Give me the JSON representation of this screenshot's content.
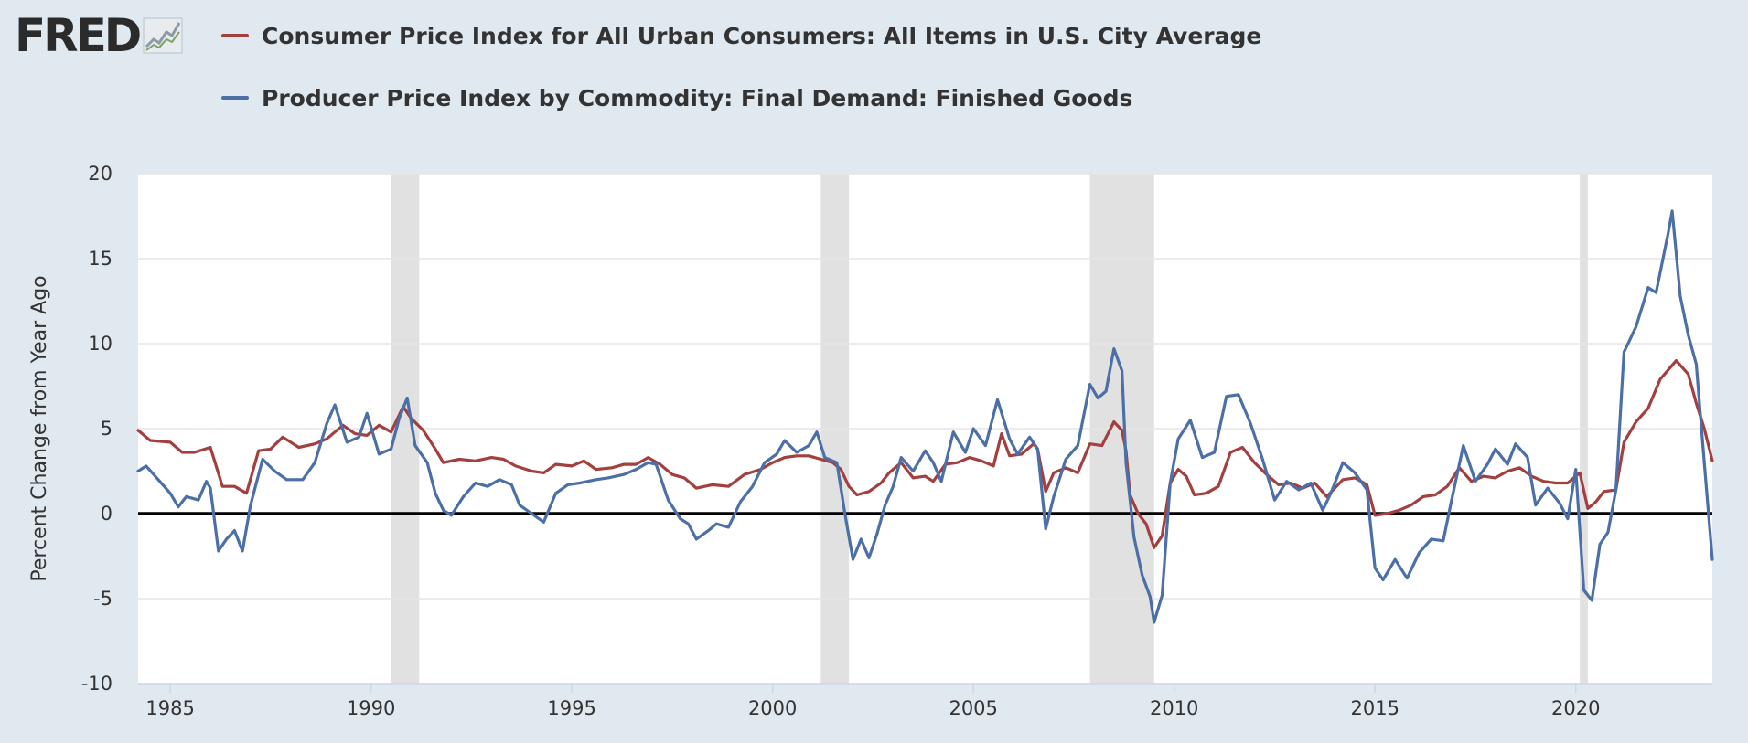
{
  "logo": {
    "text": "FRED",
    "icon": "chart-trend-icon"
  },
  "colors": {
    "background": "#e1e9f0",
    "plot": "#ffffff",
    "recession": "#e1e1e1",
    "cpi": "#a3403f",
    "ppi": "#4b6fa6",
    "zero_line": "#000000",
    "grid": "#e6e6e6"
  },
  "chart_data": {
    "type": "line",
    "ylabel": "Percent Change from Year Ago",
    "ylim": [
      -10,
      20
    ],
    "yticks": [
      -10,
      -5,
      0,
      5,
      10,
      15,
      20
    ],
    "xlim": [
      1984.2,
      2023.4
    ],
    "xticks": [
      1985,
      1990,
      1995,
      2000,
      2005,
      2010,
      2015,
      2020
    ],
    "grid": "horizontal",
    "legend_position": "top",
    "zero_line": true,
    "recessions": [
      [
        1990.5,
        1991.2
      ],
      [
        2001.2,
        2001.9
      ],
      [
        2007.9,
        2009.5
      ],
      [
        2020.1,
        2020.3
      ]
    ],
    "series": [
      {
        "name": "Consumer Price Index for All Urban Consumers: All Items in U.S. City Average",
        "color": "#a3403f",
        "points": [
          [
            1984.2,
            4.9
          ],
          [
            1984.5,
            4.3
          ],
          [
            1985.0,
            4.2
          ],
          [
            1985.3,
            3.6
          ],
          [
            1985.6,
            3.6
          ],
          [
            1986.0,
            3.9
          ],
          [
            1986.3,
            1.6
          ],
          [
            1986.6,
            1.6
          ],
          [
            1986.9,
            1.2
          ],
          [
            1987.2,
            3.7
          ],
          [
            1987.5,
            3.8
          ],
          [
            1987.8,
            4.5
          ],
          [
            1988.2,
            3.9
          ],
          [
            1988.6,
            4.1
          ],
          [
            1988.9,
            4.4
          ],
          [
            1989.3,
            5.2
          ],
          [
            1989.6,
            4.7
          ],
          [
            1989.9,
            4.6
          ],
          [
            1990.2,
            5.2
          ],
          [
            1990.5,
            4.8
          ],
          [
            1990.8,
            6.3
          ],
          [
            1991.0,
            5.6
          ],
          [
            1991.3,
            4.9
          ],
          [
            1991.6,
            3.8
          ],
          [
            1991.8,
            3.0
          ],
          [
            1992.2,
            3.2
          ],
          [
            1992.6,
            3.1
          ],
          [
            1993.0,
            3.3
          ],
          [
            1993.3,
            3.2
          ],
          [
            1993.6,
            2.8
          ],
          [
            1994.0,
            2.5
          ],
          [
            1994.3,
            2.4
          ],
          [
            1994.6,
            2.9
          ],
          [
            1995.0,
            2.8
          ],
          [
            1995.3,
            3.1
          ],
          [
            1995.6,
            2.6
          ],
          [
            1996.0,
            2.7
          ],
          [
            1996.3,
            2.9
          ],
          [
            1996.6,
            2.9
          ],
          [
            1996.9,
            3.3
          ],
          [
            1997.2,
            2.9
          ],
          [
            1997.5,
            2.3
          ],
          [
            1997.8,
            2.1
          ],
          [
            1998.1,
            1.5
          ],
          [
            1998.5,
            1.7
          ],
          [
            1998.9,
            1.6
          ],
          [
            1999.3,
            2.3
          ],
          [
            1999.7,
            2.6
          ],
          [
            2000.0,
            3.0
          ],
          [
            2000.3,
            3.3
          ],
          [
            2000.6,
            3.4
          ],
          [
            2000.9,
            3.4
          ],
          [
            2001.2,
            3.2
          ],
          [
            2001.5,
            3.0
          ],
          [
            2001.7,
            2.6
          ],
          [
            2001.9,
            1.6
          ],
          [
            2002.1,
            1.1
          ],
          [
            2002.4,
            1.3
          ],
          [
            2002.7,
            1.8
          ],
          [
            2002.9,
            2.4
          ],
          [
            2003.2,
            3.0
          ],
          [
            2003.5,
            2.1
          ],
          [
            2003.8,
            2.2
          ],
          [
            2004.0,
            1.9
          ],
          [
            2004.3,
            2.9
          ],
          [
            2004.6,
            3.0
          ],
          [
            2004.9,
            3.3
          ],
          [
            2005.2,
            3.1
          ],
          [
            2005.5,
            2.8
          ],
          [
            2005.7,
            4.7
          ],
          [
            2005.9,
            3.4
          ],
          [
            2006.2,
            3.5
          ],
          [
            2006.5,
            4.1
          ],
          [
            2006.6,
            3.8
          ],
          [
            2006.8,
            1.3
          ],
          [
            2007.0,
            2.4
          ],
          [
            2007.3,
            2.7
          ],
          [
            2007.6,
            2.4
          ],
          [
            2007.9,
            4.1
          ],
          [
            2008.2,
            4.0
          ],
          [
            2008.5,
            5.4
          ],
          [
            2008.7,
            4.9
          ],
          [
            2008.8,
            3.7
          ],
          [
            2008.9,
            1.1
          ],
          [
            2009.1,
            0.0
          ],
          [
            2009.3,
            -0.6
          ],
          [
            2009.5,
            -2.0
          ],
          [
            2009.7,
            -1.3
          ],
          [
            2009.9,
            1.8
          ],
          [
            2010.1,
            2.6
          ],
          [
            2010.3,
            2.2
          ],
          [
            2010.5,
            1.1
          ],
          [
            2010.8,
            1.2
          ],
          [
            2011.1,
            1.6
          ],
          [
            2011.4,
            3.6
          ],
          [
            2011.7,
            3.9
          ],
          [
            2012.0,
            3.0
          ],
          [
            2012.3,
            2.3
          ],
          [
            2012.6,
            1.7
          ],
          [
            2012.9,
            1.8
          ],
          [
            2013.2,
            1.5
          ],
          [
            2013.5,
            1.8
          ],
          [
            2013.8,
            1.0
          ],
          [
            2014.2,
            2.0
          ],
          [
            2014.5,
            2.1
          ],
          [
            2014.8,
            1.7
          ],
          [
            2015.0,
            -0.1
          ],
          [
            2015.3,
            0.0
          ],
          [
            2015.6,
            0.2
          ],
          [
            2015.9,
            0.5
          ],
          [
            2016.2,
            1.0
          ],
          [
            2016.5,
            1.1
          ],
          [
            2016.8,
            1.6
          ],
          [
            2017.1,
            2.7
          ],
          [
            2017.4,
            1.9
          ],
          [
            2017.7,
            2.2
          ],
          [
            2018.0,
            2.1
          ],
          [
            2018.3,
            2.5
          ],
          [
            2018.6,
            2.7
          ],
          [
            2018.9,
            2.2
          ],
          [
            2019.2,
            1.9
          ],
          [
            2019.5,
            1.8
          ],
          [
            2019.8,
            1.8
          ],
          [
            2020.1,
            2.4
          ],
          [
            2020.3,
            0.3
          ],
          [
            2020.5,
            0.7
          ],
          [
            2020.7,
            1.3
          ],
          [
            2021.0,
            1.4
          ],
          [
            2021.2,
            4.2
          ],
          [
            2021.5,
            5.4
          ],
          [
            2021.8,
            6.2
          ],
          [
            2022.1,
            7.9
          ],
          [
            2022.5,
            9.0
          ],
          [
            2022.8,
            8.2
          ],
          [
            2023.0,
            6.5
          ],
          [
            2023.2,
            5.0
          ],
          [
            2023.4,
            3.1
          ]
        ]
      },
      {
        "name": "Producer Price Index by Commodity: Final Demand: Finished Goods",
        "color": "#4b6fa6",
        "points": [
          [
            1984.2,
            2.5
          ],
          [
            1984.4,
            2.8
          ],
          [
            1984.7,
            2.0
          ],
          [
            1985.0,
            1.2
          ],
          [
            1985.2,
            0.4
          ],
          [
            1985.4,
            1.0
          ],
          [
            1985.7,
            0.8
          ],
          [
            1985.9,
            1.9
          ],
          [
            1986.0,
            1.5
          ],
          [
            1986.2,
            -2.2
          ],
          [
            1986.4,
            -1.5
          ],
          [
            1986.6,
            -1.0
          ],
          [
            1986.8,
            -2.2
          ],
          [
            1987.0,
            0.5
          ],
          [
            1987.3,
            3.2
          ],
          [
            1987.6,
            2.5
          ],
          [
            1987.9,
            2.0
          ],
          [
            1988.3,
            2.0
          ],
          [
            1988.6,
            3.0
          ],
          [
            1988.9,
            5.3
          ],
          [
            1989.1,
            6.4
          ],
          [
            1989.4,
            4.2
          ],
          [
            1989.7,
            4.5
          ],
          [
            1989.9,
            5.9
          ],
          [
            1990.2,
            3.5
          ],
          [
            1990.5,
            3.8
          ],
          [
            1990.7,
            5.6
          ],
          [
            1990.9,
            6.8
          ],
          [
            1991.1,
            4.0
          ],
          [
            1991.4,
            3.0
          ],
          [
            1991.6,
            1.2
          ],
          [
            1991.8,
            0.2
          ],
          [
            1992.0,
            -0.1
          ],
          [
            1992.3,
            1.0
          ],
          [
            1992.6,
            1.8
          ],
          [
            1992.9,
            1.6
          ],
          [
            1993.2,
            2.0
          ],
          [
            1993.5,
            1.7
          ],
          [
            1993.7,
            0.5
          ],
          [
            1994.0,
            0.0
          ],
          [
            1994.3,
            -0.5
          ],
          [
            1994.6,
            1.2
          ],
          [
            1994.9,
            1.7
          ],
          [
            1995.2,
            1.8
          ],
          [
            1995.6,
            2.0
          ],
          [
            1995.9,
            2.1
          ],
          [
            1996.3,
            2.3
          ],
          [
            1996.6,
            2.6
          ],
          [
            1996.9,
            3.0
          ],
          [
            1997.1,
            2.9
          ],
          [
            1997.4,
            0.8
          ],
          [
            1997.7,
            -0.3
          ],
          [
            1997.9,
            -0.6
          ],
          [
            1998.1,
            -1.5
          ],
          [
            1998.4,
            -1.0
          ],
          [
            1998.6,
            -0.6
          ],
          [
            1998.9,
            -0.8
          ],
          [
            1999.2,
            0.7
          ],
          [
            1999.5,
            1.6
          ],
          [
            1999.8,
            3.0
          ],
          [
            2000.1,
            3.5
          ],
          [
            2000.3,
            4.3
          ],
          [
            2000.6,
            3.6
          ],
          [
            2000.9,
            4.0
          ],
          [
            2001.1,
            4.8
          ],
          [
            2001.3,
            3.3
          ],
          [
            2001.6,
            3.0
          ],
          [
            2001.8,
            0.0
          ],
          [
            2002.0,
            -2.7
          ],
          [
            2002.2,
            -1.5
          ],
          [
            2002.4,
            -2.6
          ],
          [
            2002.6,
            -1.2
          ],
          [
            2002.8,
            0.5
          ],
          [
            2003.0,
            1.6
          ],
          [
            2003.2,
            3.3
          ],
          [
            2003.5,
            2.5
          ],
          [
            2003.8,
            3.7
          ],
          [
            2004.0,
            3.0
          ],
          [
            2004.2,
            1.9
          ],
          [
            2004.5,
            4.8
          ],
          [
            2004.8,
            3.6
          ],
          [
            2005.0,
            5.0
          ],
          [
            2005.3,
            4.0
          ],
          [
            2005.6,
            6.7
          ],
          [
            2005.9,
            4.4
          ],
          [
            2006.1,
            3.5
          ],
          [
            2006.4,
            4.5
          ],
          [
            2006.6,
            3.8
          ],
          [
            2006.8,
            -0.9
          ],
          [
            2007.0,
            1.0
          ],
          [
            2007.3,
            3.2
          ],
          [
            2007.6,
            4.0
          ],
          [
            2007.9,
            7.6
          ],
          [
            2008.1,
            6.8
          ],
          [
            2008.3,
            7.2
          ],
          [
            2008.5,
            9.7
          ],
          [
            2008.7,
            8.4
          ],
          [
            2008.8,
            3.0
          ],
          [
            2009.0,
            -1.4
          ],
          [
            2009.2,
            -3.6
          ],
          [
            2009.4,
            -4.9
          ],
          [
            2009.5,
            -6.4
          ],
          [
            2009.7,
            -4.8
          ],
          [
            2009.9,
            1.8
          ],
          [
            2010.1,
            4.4
          ],
          [
            2010.4,
            5.5
          ],
          [
            2010.7,
            3.3
          ],
          [
            2011.0,
            3.6
          ],
          [
            2011.3,
            6.9
          ],
          [
            2011.6,
            7.0
          ],
          [
            2011.9,
            5.3
          ],
          [
            2012.2,
            3.2
          ],
          [
            2012.5,
            0.8
          ],
          [
            2012.8,
            1.9
          ],
          [
            2013.1,
            1.4
          ],
          [
            2013.4,
            1.8
          ],
          [
            2013.7,
            0.2
          ],
          [
            2013.9,
            1.2
          ],
          [
            2014.2,
            3.0
          ],
          [
            2014.5,
            2.4
          ],
          [
            2014.8,
            1.4
          ],
          [
            2015.0,
            -3.2
          ],
          [
            2015.2,
            -3.9
          ],
          [
            2015.5,
            -2.7
          ],
          [
            2015.8,
            -3.8
          ],
          [
            2016.1,
            -2.3
          ],
          [
            2016.4,
            -1.5
          ],
          [
            2016.7,
            -1.6
          ],
          [
            2016.9,
            0.7
          ],
          [
            2017.2,
            4.0
          ],
          [
            2017.5,
            1.9
          ],
          [
            2017.8,
            2.9
          ],
          [
            2018.0,
            3.8
          ],
          [
            2018.3,
            2.9
          ],
          [
            2018.5,
            4.1
          ],
          [
            2018.8,
            3.3
          ],
          [
            2019.0,
            0.5
          ],
          [
            2019.3,
            1.5
          ],
          [
            2019.6,
            0.6
          ],
          [
            2019.8,
            -0.3
          ],
          [
            2020.0,
            2.6
          ],
          [
            2020.2,
            -4.5
          ],
          [
            2020.4,
            -5.1
          ],
          [
            2020.6,
            -1.8
          ],
          [
            2020.8,
            -1.1
          ],
          [
            2021.0,
            1.4
          ],
          [
            2021.2,
            9.5
          ],
          [
            2021.5,
            11.0
          ],
          [
            2021.8,
            13.3
          ],
          [
            2022.0,
            13.0
          ],
          [
            2022.3,
            16.5
          ],
          [
            2022.4,
            17.8
          ],
          [
            2022.6,
            12.8
          ],
          [
            2022.8,
            10.5
          ],
          [
            2023.0,
            8.8
          ],
          [
            2023.2,
            3.0
          ],
          [
            2023.4,
            -2.7
          ]
        ]
      }
    ]
  }
}
